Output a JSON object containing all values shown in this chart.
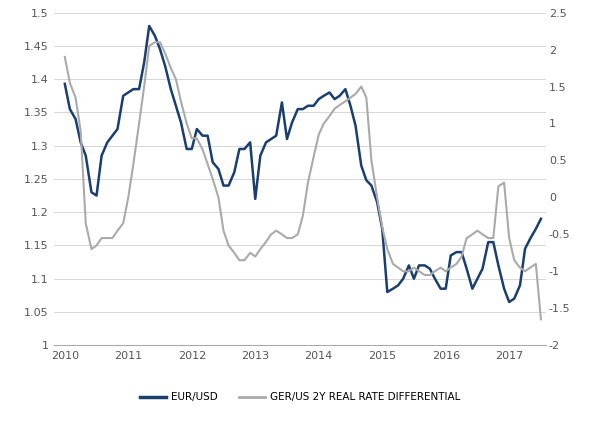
{
  "eur_usd": {
    "dates": [
      2010.0,
      2010.08,
      2010.17,
      2010.25,
      2010.33,
      2010.42,
      2010.5,
      2010.58,
      2010.67,
      2010.75,
      2010.83,
      2010.92,
      2011.0,
      2011.08,
      2011.17,
      2011.25,
      2011.33,
      2011.42,
      2011.5,
      2011.58,
      2011.67,
      2011.75,
      2011.83,
      2011.92,
      2012.0,
      2012.08,
      2012.17,
      2012.25,
      2012.33,
      2012.42,
      2012.5,
      2012.58,
      2012.67,
      2012.75,
      2012.83,
      2012.92,
      2013.0,
      2013.08,
      2013.17,
      2013.25,
      2013.33,
      2013.42,
      2013.5,
      2013.58,
      2013.67,
      2013.75,
      2013.83,
      2013.92,
      2014.0,
      2014.08,
      2014.17,
      2014.25,
      2014.33,
      2014.42,
      2014.5,
      2014.58,
      2014.67,
      2014.75,
      2014.83,
      2014.92,
      2015.0,
      2015.08,
      2015.17,
      2015.25,
      2015.33,
      2015.42,
      2015.5,
      2015.58,
      2015.67,
      2015.75,
      2015.83,
      2015.92,
      2016.0,
      2016.08,
      2016.17,
      2016.25,
      2016.33,
      2016.42,
      2016.5,
      2016.58,
      2016.67,
      2016.75,
      2016.83,
      2016.92,
      2017.0,
      2017.08,
      2017.17,
      2017.25,
      2017.33,
      2017.42,
      2017.5
    ],
    "values": [
      1.393,
      1.355,
      1.34,
      1.305,
      1.285,
      1.23,
      1.225,
      1.285,
      1.305,
      1.315,
      1.325,
      1.375,
      1.38,
      1.385,
      1.385,
      1.425,
      1.48,
      1.465,
      1.445,
      1.42,
      1.385,
      1.36,
      1.335,
      1.295,
      1.295,
      1.325,
      1.315,
      1.315,
      1.275,
      1.265,
      1.24,
      1.24,
      1.26,
      1.295,
      1.295,
      1.305,
      1.22,
      1.285,
      1.305,
      1.31,
      1.315,
      1.365,
      1.31,
      1.335,
      1.355,
      1.355,
      1.36,
      1.36,
      1.37,
      1.375,
      1.38,
      1.37,
      1.375,
      1.385,
      1.36,
      1.33,
      1.27,
      1.248,
      1.24,
      1.215,
      1.175,
      1.08,
      1.085,
      1.09,
      1.1,
      1.12,
      1.1,
      1.12,
      1.12,
      1.115,
      1.1,
      1.085,
      1.085,
      1.135,
      1.14,
      1.14,
      1.115,
      1.085,
      1.1,
      1.115,
      1.155,
      1.155,
      1.12,
      1.085,
      1.065,
      1.07,
      1.09,
      1.145,
      1.16,
      1.175,
      1.19
    ]
  },
  "ger_us": {
    "dates": [
      2010.0,
      2010.08,
      2010.17,
      2010.25,
      2010.33,
      2010.42,
      2010.5,
      2010.58,
      2010.67,
      2010.75,
      2010.83,
      2010.92,
      2011.0,
      2011.08,
      2011.17,
      2011.25,
      2011.33,
      2011.42,
      2011.5,
      2011.58,
      2011.67,
      2011.75,
      2011.83,
      2011.92,
      2012.0,
      2012.08,
      2012.17,
      2012.25,
      2012.33,
      2012.42,
      2012.5,
      2012.58,
      2012.67,
      2012.75,
      2012.83,
      2012.92,
      2013.0,
      2013.08,
      2013.17,
      2013.25,
      2013.33,
      2013.42,
      2013.5,
      2013.58,
      2013.67,
      2013.75,
      2013.83,
      2013.92,
      2014.0,
      2014.08,
      2014.17,
      2014.25,
      2014.33,
      2014.42,
      2014.5,
      2014.58,
      2014.67,
      2014.75,
      2014.83,
      2014.92,
      2015.0,
      2015.08,
      2015.17,
      2015.25,
      2015.33,
      2015.42,
      2015.5,
      2015.58,
      2015.67,
      2015.75,
      2015.83,
      2015.92,
      2016.0,
      2016.08,
      2016.17,
      2016.25,
      2016.33,
      2016.42,
      2016.5,
      2016.58,
      2016.67,
      2016.75,
      2016.83,
      2016.92,
      2017.0,
      2017.08,
      2017.17,
      2017.25,
      2017.33,
      2017.42,
      2017.5
    ],
    "values": [
      1.9,
      1.55,
      1.35,
      0.9,
      -0.35,
      -0.7,
      -0.65,
      -0.55,
      -0.55,
      -0.55,
      -0.45,
      -0.35,
      0.0,
      0.45,
      1.0,
      1.5,
      2.05,
      2.1,
      2.1,
      1.95,
      1.75,
      1.6,
      1.3,
      1.0,
      0.8,
      0.8,
      0.65,
      0.45,
      0.25,
      0.0,
      -0.45,
      -0.65,
      -0.75,
      -0.85,
      -0.85,
      -0.75,
      -0.8,
      -0.7,
      -0.6,
      -0.5,
      -0.45,
      -0.5,
      -0.55,
      -0.55,
      -0.5,
      -0.25,
      0.2,
      0.55,
      0.85,
      1.0,
      1.1,
      1.2,
      1.25,
      1.3,
      1.35,
      1.4,
      1.5,
      1.35,
      0.5,
      0.0,
      -0.4,
      -0.7,
      -0.9,
      -0.95,
      -1.0,
      -1.0,
      -0.95,
      -1.0,
      -1.05,
      -1.05,
      -1.0,
      -0.95,
      -1.0,
      -0.95,
      -0.9,
      -0.8,
      -0.55,
      -0.5,
      -0.45,
      -0.5,
      -0.55,
      -0.55,
      0.15,
      0.2,
      -0.55,
      -0.85,
      -0.95,
      -1.0,
      -0.95,
      -0.9,
      -1.65
    ]
  },
  "eur_color": "#1a3f6f",
  "ger_color": "#aaaaaa",
  "ylim_left": [
    1.0,
    1.5
  ],
  "ylim_right": [
    -2.0,
    2.5
  ],
  "yticks_left": [
    1.0,
    1.05,
    1.1,
    1.15,
    1.2,
    1.25,
    1.3,
    1.35,
    1.4,
    1.45,
    1.5
  ],
  "ytick_labels_left": [
    "1",
    "1.05",
    "1.1",
    "1.15",
    "1.2",
    "1.25",
    "1.3",
    "1.35",
    "1.4",
    "1.45",
    "1.5"
  ],
  "yticks_right": [
    -2.0,
    -1.5,
    -1.0,
    -0.5,
    0.0,
    0.5,
    1.0,
    1.5,
    2.0,
    2.5
  ],
  "ytick_labels_right": [
    "-2",
    "-1.5",
    "-1",
    "-0.5",
    "0",
    "0.5",
    "1",
    "1.5",
    "2",
    "2.5"
  ],
  "xticks": [
    2010,
    2011,
    2012,
    2013,
    2014,
    2015,
    2016,
    2017
  ],
  "xlim": [
    2009.83,
    2017.58
  ],
  "legend_eur": "EUR/USD",
  "legend_ger": "GER/US 2Y REAL RATE DIFFERENTIAL",
  "background_color": "#ffffff",
  "grid_color": "#d0d0d0",
  "tick_color": "#555555",
  "tick_fontsize": 8,
  "legend_fontsize": 7.5,
  "linewidth_eur": 1.8,
  "linewidth_ger": 1.5
}
